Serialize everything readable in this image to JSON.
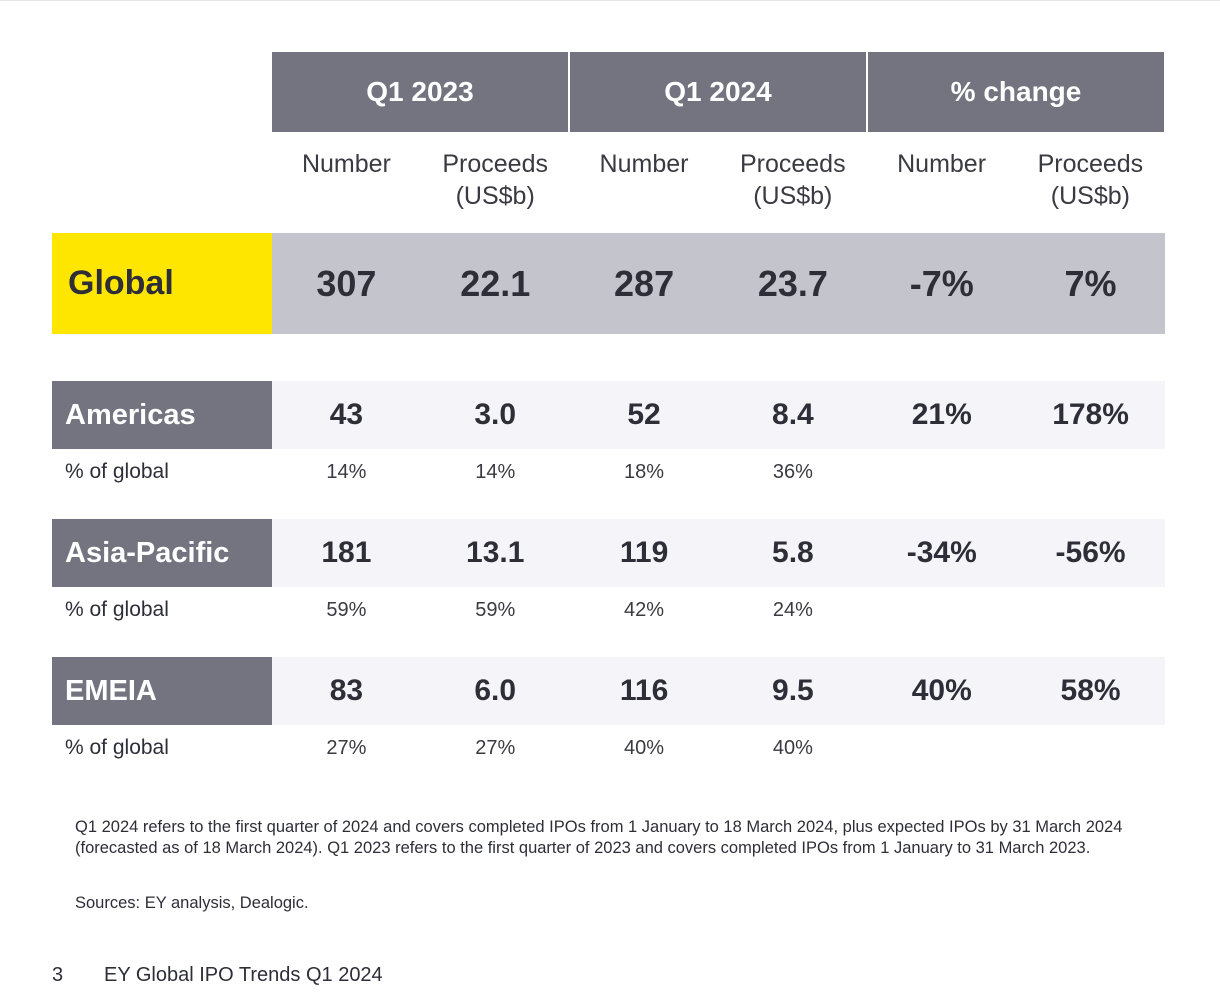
{
  "periods": [
    "Q1 2023",
    "Q1 2024",
    "% change"
  ],
  "subheaders": [
    "Number",
    "Proceeds\n(US$b)",
    "Number",
    "Proceeds\n(US$b)",
    "Number",
    "Proceeds\n(US$b)"
  ],
  "global": {
    "label": "Global",
    "values": [
      "307",
      "22.1",
      "287",
      "23.7",
      "-7%",
      "7%"
    ]
  },
  "regions": [
    {
      "label": "Americas",
      "values": [
        "43",
        "3.0",
        "52",
        "8.4",
        "21%",
        "178%"
      ],
      "pct_label": "% of global",
      "pct_values": [
        "14%",
        "14%",
        "18%",
        "36%",
        "",
        ""
      ]
    },
    {
      "label": "Asia-Pacific",
      "values": [
        "181",
        "13.1",
        "119",
        "5.8",
        "-34%",
        "-56%"
      ],
      "pct_label": "% of global",
      "pct_values": [
        "59%",
        "59%",
        "42%",
        "24%",
        "",
        ""
      ]
    },
    {
      "label": "EMEIA",
      "values": [
        "83",
        "6.0",
        "116",
        "9.5",
        "40%",
        "58%"
      ],
      "pct_label": "% of global",
      "pct_values": [
        "27%",
        "27%",
        "40%",
        "40%",
        "",
        ""
      ]
    }
  ],
  "note": "Q1 2024 refers to the first quarter of 2024 and covers completed IPOs from 1 January to 18 March 2024, plus expected IPOs by 31 March 2024 (forecasted as of 18 March 2024). Q1 2023 refers to the first quarter of 2023 and covers completed IPOs from 1 January to 31 March 2023.",
  "sources": "Sources: EY analysis, Dealogic.",
  "footer": {
    "page_number": "3",
    "title": "EY Global IPO Trends Q1 2024"
  },
  "colors": {
    "header_gray": "#747480",
    "global_yellow": "#ffe600",
    "global_band": "#c4c4cd",
    "region_band": "#f5f5f9"
  }
}
